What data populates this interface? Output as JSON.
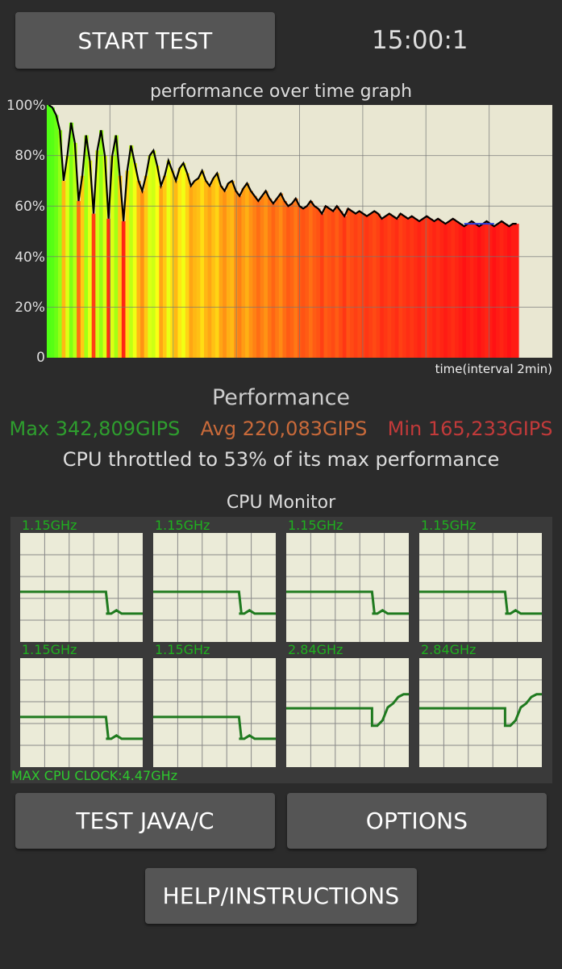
{
  "header": {
    "start_button": "START TEST",
    "timer": "15:00:1"
  },
  "graph": {
    "title": "performance over time graph",
    "y_ticks": [
      "100%",
      "80%",
      "60%",
      "40%",
      "20%",
      "0"
    ],
    "x_label": "time(interval 2min)"
  },
  "chart_data": {
    "type": "area",
    "title": "performance over time graph",
    "xlabel": "time(interval 2min)",
    "ylabel": "",
    "ylim": [
      0,
      100
    ],
    "grid": true,
    "series": [
      {
        "values": [
          100,
          99,
          96,
          90,
          70,
          80,
          93,
          85,
          62,
          72,
          88,
          78,
          57,
          82,
          90,
          80,
          55,
          80,
          88,
          72,
          54,
          74,
          84,
          77,
          70,
          66,
          72,
          80,
          82,
          76,
          68,
          72,
          78,
          74,
          70,
          75,
          77,
          73,
          68,
          70,
          71,
          74,
          70,
          68,
          71,
          73,
          68,
          66,
          69,
          70,
          66,
          64,
          67,
          69,
          66,
          64,
          62,
          64,
          66,
          63,
          61,
          63,
          65,
          62,
          60,
          61,
          63,
          60,
          59,
          60,
          62,
          60,
          59,
          57,
          60,
          59,
          58,
          60,
          58,
          56,
          59,
          58,
          57,
          58,
          57,
          56,
          57,
          58,
          57,
          55,
          56,
          57,
          56,
          55,
          57,
          56,
          55,
          56,
          55,
          54,
          55,
          56,
          55,
          54,
          55,
          54,
          53,
          54,
          55,
          54,
          53,
          52,
          53,
          54,
          53,
          52,
          53,
          54,
          53,
          52,
          53,
          54,
          53,
          52,
          53,
          53
        ]
      }
    ]
  },
  "performance": {
    "heading": "Performance",
    "max_text": "Max 342,809GIPS",
    "avg_text": "Avg 220,083GIPS",
    "min_text": "Min 165,233GIPS",
    "throttle_text": "CPU throttled to 53% of its max performance",
    "colors": {
      "max": "#2e9e2e",
      "avg": "#c96a3a",
      "min": "#c23a3a"
    }
  },
  "cpu_monitor": {
    "title": "CPU Monitor",
    "cores": [
      {
        "freq": "1.15GHz",
        "trend": [
          0.47,
          0.47,
          0.47,
          0.47,
          0.47,
          0.47,
          0.47,
          0.47,
          0.47,
          0.47,
          0.47,
          0.47,
          0.47,
          0.47,
          0.47,
          0.47,
          0.47,
          0.47,
          0.47,
          0.47,
          0.47,
          0.47,
          0.47,
          0.47,
          0.47,
          0.47,
          0.47,
          0.47,
          0.47,
          0.47,
          0.47,
          0.47,
          0.47,
          0.47,
          0.47,
          0.47,
          0.47,
          0.47,
          0.47,
          0.47,
          0.47,
          0.47,
          0.47,
          0.47,
          0.47,
          0.47,
          0.47,
          0.47,
          0.47,
          0.47,
          0.47,
          0.47,
          0.47,
          0.47,
          0.47,
          0.47,
          0.47,
          0.47,
          0.47,
          0.47,
          0.47,
          0.47,
          0.47,
          0.47,
          0.47,
          0.47,
          0.47,
          0.47,
          0.47,
          0.47,
          0.47,
          0.47,
          0.47,
          0.47,
          0.47,
          0.47,
          0.47,
          0.47,
          0.47,
          0.47,
          0.47,
          0.47,
          0.47,
          0.47,
          0.47,
          0.47,
          0.47,
          0.47,
          0.47,
          0.47,
          0.47,
          0.47,
          0.47,
          0.47,
          0.47,
          0.47,
          0.47,
          0.47,
          0.47,
          0.47,
          0.47,
          0.47,
          0.47,
          0.47,
          0.47,
          0.47,
          0.47,
          0.47,
          0.47,
          0.47,
          0.47,
          0.47,
          0.47,
          0.47,
          0.47,
          0.47,
          0.47,
          0.47,
          0.47,
          0.47,
          0.47,
          0.47,
          0.47,
          0.47,
          0.47,
          0.47,
          0.47,
          0.47,
          0.47,
          0.47,
          0.47,
          0.47,
          0.47,
          0.47,
          0.47,
          0.47,
          0.47,
          0.47,
          0.47,
          0.47,
          0.47,
          0.47,
          0.47,
          0.47,
          0.47,
          0.47,
          0.47,
          0.47,
          0.47,
          0.47
        ]
      },
      {
        "freq": "1.15GHz"
      },
      {
        "freq": "1.15GHz"
      },
      {
        "freq": "1.15GHz"
      },
      {
        "freq": "1.15GHz"
      },
      {
        "freq": "1.15GHz"
      },
      {
        "freq": "2.84GHz"
      },
      {
        "freq": "2.84GHz"
      }
    ],
    "core_series": {
      "low": [
        0.46,
        0.46,
        0.46,
        0.46,
        0.46,
        0.46,
        0.46,
        0.46,
        0.46,
        0.46,
        0.46,
        0.46,
        0.46,
        0.46,
        0.46,
        0.46,
        0.46,
        0.46,
        0.46,
        0.46,
        0.46,
        0.46,
        0.46,
        0.46,
        0.46,
        0.46,
        0.46,
        0.46,
        0.46,
        0.46,
        0.46,
        0.46,
        0.46,
        0.46,
        0.46,
        0.46,
        0.46,
        0.46,
        0.46,
        0.46,
        0.46,
        0.46,
        0.46,
        0.46,
        0.46,
        0.46,
        0.46,
        0.46,
        0.46,
        0.46,
        0.46,
        0.46,
        0.46,
        0.46,
        0.46,
        0.46,
        0.46,
        0.46,
        0.46,
        0.46,
        0.46,
        0.46,
        0.46,
        0.46,
        0.46,
        0.46,
        0.46,
        0.46,
        0.46,
        0.46,
        0.46,
        0.46,
        0.46,
        0.46,
        0.46,
        0.46,
        0.46,
        0.46,
        0.46,
        0.46,
        0.46,
        0.46,
        0.46,
        0.46,
        0.46,
        0.46,
        0.46,
        0.46,
        0.46,
        0.46,
        0.46,
        0.46,
        0.46,
        0.46,
        0.46,
        0.46,
        0.46,
        0.46,
        0.46,
        0.46,
        0.46,
        0.46,
        0.46,
        0.46,
        0.46,
        0.46,
        0.46,
        0.46,
        0.46,
        0.46,
        0.46,
        0.46,
        0.46,
        0.46,
        0.46,
        0.46,
        0.46,
        0.46,
        0.46,
        0.46,
        0.46,
        0.46,
        0.46,
        0.46,
        0.46,
        0.46,
        0.46,
        0.46,
        0.46,
        0.46,
        0.46,
        0.46,
        0.46,
        0.46,
        0.46,
        0.46,
        0.46,
        0.46,
        0.46,
        0.46,
        0.46,
        0.46,
        0.46,
        0.46,
        0.46,
        0.46,
        0.46,
        0.46,
        0.46,
        0.46
      ],
      "low_tail": [
        0.27,
        0.27,
        0.29,
        0.27,
        0.27,
        0.27,
        0.27,
        0.27
      ],
      "high_tail": [
        0.38,
        0.38,
        0.42,
        0.52,
        0.55,
        0.6,
        0.62,
        0.62
      ]
    },
    "max_clock": "MAX CPU CLOCK:4.47GHz"
  },
  "buttons": {
    "test_java_c": "TEST JAVA/C",
    "options": "OPTIONS",
    "help": "HELP/INSTRUCTIONS"
  }
}
